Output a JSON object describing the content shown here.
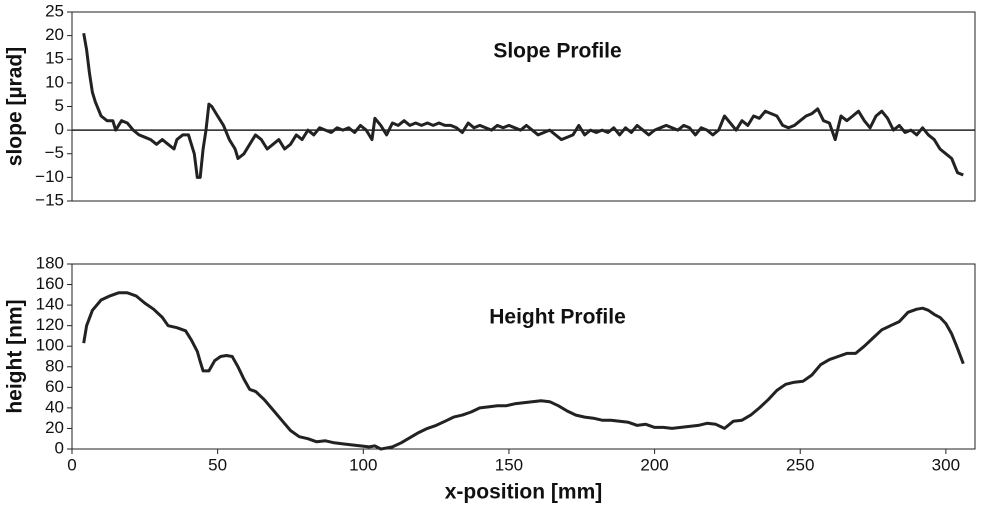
{
  "chart_data": [
    {
      "type": "line",
      "title": "Slope Profile",
      "ylabel": "slope [µrad]",
      "color": "#222222",
      "zero_line": true,
      "xlim": [
        0,
        310
      ],
      "ylim": [
        -15,
        25
      ],
      "yticks": [
        {
          "value": -15,
          "label": "−15"
        },
        {
          "value": -10,
          "label": "−10"
        },
        {
          "value": -5,
          "label": "−5"
        },
        0,
        5,
        10,
        15,
        20,
        25
      ],
      "x": [
        4,
        5,
        6,
        7,
        8,
        10,
        12,
        14,
        15,
        17,
        19,
        21,
        23,
        25,
        27,
        29,
        31,
        33,
        35,
        36,
        38,
        40,
        42,
        43,
        44,
        45,
        46,
        47,
        48,
        50,
        52,
        54,
        56,
        57,
        59,
        61,
        63,
        65,
        67,
        69,
        71,
        73,
        75,
        77,
        79,
        81,
        83,
        85,
        87,
        89,
        91,
        93,
        95,
        97,
        99,
        101,
        103,
        104,
        106,
        108,
        110,
        112,
        114,
        116,
        118,
        120,
        122,
        124,
        126,
        128,
        130,
        132,
        134,
        136,
        138,
        140,
        142,
        144,
        146,
        148,
        150,
        152,
        154,
        156,
        158,
        160,
        162,
        164,
        166,
        168,
        170,
        172,
        174,
        176,
        178,
        180,
        182,
        184,
        186,
        188,
        190,
        192,
        194,
        196,
        198,
        200,
        202,
        204,
        206,
        208,
        210,
        212,
        214,
        216,
        218,
        220,
        222,
        224,
        226,
        228,
        230,
        232,
        234,
        236,
        238,
        240,
        242,
        244,
        246,
        248,
        250,
        252,
        254,
        256,
        258,
        260,
        262,
        264,
        266,
        268,
        270,
        272,
        274,
        276,
        278,
        280,
        282,
        284,
        286,
        288,
        290,
        292,
        294,
        296,
        298,
        300,
        302,
        304,
        306
      ],
      "values": [
        20.5,
        17,
        12,
        8,
        6,
        3,
        2,
        2,
        0,
        2,
        1.5,
        0,
        -1,
        -1.5,
        -2,
        -3,
        -2,
        -3,
        -4,
        -2,
        -1,
        -1,
        -5,
        -10,
        -10,
        -4,
        0,
        5.5,
        5,
        3,
        1,
        -2,
        -4,
        -6,
        -5,
        -3,
        -1,
        -2,
        -4,
        -3,
        -2,
        -4,
        -3,
        -1,
        -2,
        0,
        -1,
        0.5,
        0,
        -0.5,
        0.5,
        0,
        0.5,
        -0.5,
        1,
        0,
        -2,
        2.5,
        1,
        -1,
        1.5,
        1,
        2,
        1,
        1.5,
        1,
        1.5,
        1,
        1.5,
        1,
        1,
        0.5,
        -0.5,
        1.5,
        0.5,
        1,
        0.5,
        0,
        1,
        0.5,
        1,
        0.5,
        0,
        1,
        0,
        -1,
        -0.5,
        0,
        -1,
        -2,
        -1.5,
        -1,
        1,
        -1,
        0,
        -0.5,
        0,
        -0.5,
        0.5,
        -1,
        0.5,
        -0.5,
        1,
        0,
        -1,
        0,
        0.5,
        1,
        0.5,
        0,
        1,
        0.5,
        -1,
        0.5,
        0,
        -1,
        0,
        3,
        1.5,
        0,
        2,
        1,
        3,
        2.5,
        4,
        3.5,
        3,
        1,
        0.5,
        1,
        2,
        3,
        3.5,
        4.5,
        2,
        1.5,
        -2,
        3,
        2,
        3,
        4,
        2,
        0.5,
        3,
        4,
        2.5,
        0,
        1,
        -0.5,
        0,
        -1,
        0.5,
        -1,
        -2,
        -4,
        -5,
        -6,
        -9,
        -9.5
      ]
    },
    {
      "type": "line",
      "title": "Height Profile",
      "ylabel": "height [nm]",
      "xlabel": "x-position [mm]",
      "color": "#222222",
      "xlim": [
        0,
        310
      ],
      "xticks": [
        0,
        50,
        100,
        150,
        200,
        250,
        300
      ],
      "ylim": [
        0,
        180
      ],
      "yticks": [
        0,
        20,
        40,
        60,
        80,
        100,
        120,
        140,
        160,
        180
      ],
      "x": [
        4,
        5,
        7,
        10,
        13,
        16,
        19,
        22,
        25,
        28,
        31,
        33,
        36,
        39,
        41,
        43,
        44,
        45,
        47,
        49,
        51,
        53,
        55,
        57,
        59,
        61,
        63,
        66,
        69,
        72,
        75,
        78,
        81,
        84,
        87,
        90,
        93,
        96,
        99,
        102,
        104,
        106,
        108,
        110,
        113,
        116,
        119,
        122,
        125,
        128,
        131,
        134,
        137,
        140,
        143,
        146,
        149,
        152,
        155,
        158,
        161,
        164,
        167,
        170,
        173,
        176,
        179,
        182,
        185,
        188,
        191,
        194,
        197,
        200,
        203,
        206,
        209,
        212,
        215,
        218,
        221,
        224,
        227,
        230,
        233,
        236,
        239,
        242,
        245,
        248,
        251,
        254,
        257,
        260,
        263,
        266,
        269,
        272,
        275,
        278,
        281,
        284,
        287,
        290,
        292,
        294,
        296,
        298,
        300,
        302,
        304,
        306
      ],
      "values": [
        103,
        120,
        135,
        145,
        149,
        152,
        152,
        149,
        142,
        136,
        128,
        120,
        118,
        115,
        106,
        95,
        85,
        76,
        76,
        86,
        90,
        91,
        90,
        80,
        68,
        58,
        56,
        48,
        38,
        28,
        18,
        12,
        10,
        7,
        8,
        6,
        5,
        4,
        3,
        2,
        3,
        0,
        1,
        2,
        6,
        11,
        16,
        20,
        23,
        27,
        31,
        33,
        36,
        40,
        41,
        42,
        42,
        44,
        45,
        46,
        47,
        46,
        42,
        37,
        33,
        31,
        30,
        28,
        28,
        27,
        26,
        23,
        24,
        21,
        21,
        20,
        21,
        22,
        23,
        25,
        24,
        20,
        27,
        28,
        33,
        40,
        48,
        57,
        63,
        65,
        66,
        72,
        82,
        87,
        90,
        93,
        93,
        100,
        108,
        116,
        120,
        124,
        133,
        136,
        137,
        135,
        131,
        128,
        122,
        112,
        98,
        83
      ]
    }
  ]
}
